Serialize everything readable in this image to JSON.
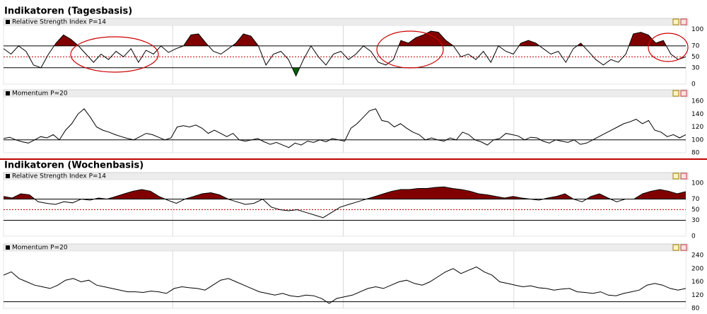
{
  "headers": [
    "Indikatoren (Tagesbasis)",
    "Indikatoren (Wochenbasis)"
  ],
  "chart_data": [
    {
      "type": "line",
      "title": "Relative Strength Index P=14",
      "ylim": [
        0,
        100
      ],
      "yticks": [
        0,
        30,
        50,
        70,
        100
      ],
      "upper": 70,
      "middle": 50,
      "lower": 30,
      "upper_fill_color": "#800000",
      "lower_fill_color": "#006400",
      "grid": false,
      "series": [
        {
          "color": "#000000",
          "values": [
            65,
            55,
            70,
            60,
            35,
            30,
            55,
            75,
            90,
            82,
            70,
            55,
            40,
            55,
            45,
            60,
            50,
            65,
            40,
            62,
            55,
            70,
            58,
            65,
            70,
            90,
            92,
            75,
            60,
            55,
            65,
            75,
            92,
            88,
            70,
            35,
            55,
            60,
            45,
            15,
            45,
            70,
            50,
            35,
            55,
            60,
            45,
            55,
            70,
            60,
            40,
            35,
            45,
            80,
            75,
            85,
            90,
            97,
            95,
            80,
            70,
            50,
            55,
            45,
            60,
            40,
            70,
            60,
            55,
            75,
            80,
            75,
            65,
            55,
            60,
            40,
            65,
            75,
            60,
            45,
            35,
            45,
            40,
            55,
            92,
            95,
            90,
            75,
            80,
            55,
            45,
            50
          ]
        }
      ]
    },
    {
      "type": "line",
      "title": "Momentum P=20",
      "ylim": [
        80,
        160
      ],
      "yticks": [
        80,
        100,
        120,
        140,
        160
      ],
      "baseline": 100,
      "grid": false,
      "series": [
        {
          "color": "#000000",
          "values": [
            102,
            104,
            100,
            97,
            95,
            100,
            105,
            103,
            108,
            100,
            115,
            125,
            140,
            148,
            135,
            120,
            115,
            112,
            108,
            105,
            102,
            100,
            105,
            110,
            108,
            104,
            100,
            103,
            120,
            122,
            120,
            123,
            118,
            110,
            115,
            110,
            105,
            110,
            100,
            98,
            100,
            102,
            97,
            93,
            96,
            92,
            88,
            95,
            92,
            98,
            96,
            100,
            97,
            102,
            100,
            98,
            118,
            125,
            135,
            145,
            148,
            130,
            128,
            120,
            125,
            118,
            112,
            108,
            100,
            103,
            100,
            98,
            103,
            100,
            112,
            108,
            100,
            97,
            92,
            100,
            102,
            110,
            108,
            106,
            100,
            104,
            103,
            98,
            95,
            100,
            98,
            96,
            100,
            93,
            95,
            100,
            105,
            110,
            115,
            120,
            125,
            128,
            132,
            125,
            130,
            115,
            112,
            105,
            108,
            103,
            108
          ]
        }
      ]
    },
    {
      "type": "line",
      "title": "Relative Strength Index P=14",
      "ylim": [
        0,
        100
      ],
      "yticks": [
        0,
        30,
        50,
        70,
        100
      ],
      "upper": 70,
      "middle": 50,
      "lower": 30,
      "upper_fill_color": "#800000",
      "lower_fill_color": "#006400",
      "grid": false,
      "series": [
        {
          "color": "#000000",
          "values": [
            75,
            72,
            80,
            78,
            65,
            62,
            60,
            65,
            63,
            70,
            68,
            72,
            70,
            75,
            80,
            85,
            88,
            85,
            75,
            68,
            62,
            70,
            75,
            80,
            82,
            78,
            70,
            65,
            60,
            62,
            70,
            55,
            50,
            48,
            50,
            45,
            40,
            35,
            45,
            55,
            60,
            65,
            70,
            75,
            80,
            85,
            88,
            88,
            90,
            90,
            92,
            93,
            90,
            88,
            85,
            80,
            78,
            75,
            72,
            75,
            72,
            70,
            68,
            72,
            75,
            80,
            70,
            65,
            75,
            80,
            72,
            65,
            70,
            70,
            80,
            85,
            88,
            85,
            80,
            84
          ]
        }
      ]
    },
    {
      "type": "line",
      "title": "Momentum P=20",
      "ylim": [
        80,
        240
      ],
      "yticks": [
        80,
        120,
        160,
        200,
        240
      ],
      "baseline": 100,
      "grid": false,
      "series": [
        {
          "color": "#000000",
          "values": [
            180,
            190,
            170,
            160,
            150,
            145,
            140,
            150,
            165,
            170,
            160,
            165,
            150,
            145,
            140,
            135,
            130,
            130,
            128,
            132,
            130,
            125,
            140,
            145,
            142,
            140,
            135,
            150,
            165,
            170,
            160,
            150,
            140,
            130,
            125,
            120,
            125,
            118,
            115,
            120,
            118,
            110,
            95,
            110,
            115,
            120,
            130,
            140,
            145,
            140,
            150,
            160,
            165,
            155,
            150,
            160,
            175,
            190,
            200,
            185,
            195,
            205,
            190,
            180,
            160,
            155,
            150,
            145,
            148,
            142,
            140,
            135,
            138,
            140,
            130,
            128,
            125,
            130,
            120,
            118,
            125,
            130,
            135,
            150,
            155,
            150,
            140,
            135,
            140
          ]
        }
      ]
    }
  ]
}
